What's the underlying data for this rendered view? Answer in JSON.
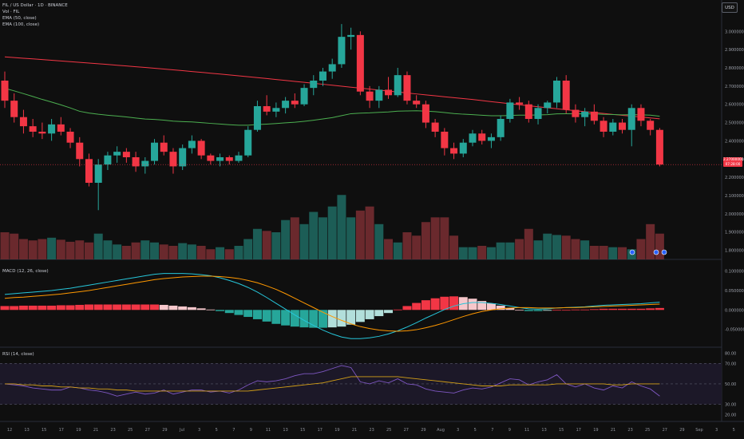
{
  "header": {
    "symbol_line": "FIL / US Dollar · 1D · BINANCE",
    "vol_label": "Vol · FIL",
    "ema50_label": "EMA (50, close)",
    "ema100_label": "EMA (100, close)",
    "currency": "USD"
  },
  "last_price": {
    "value": "2.27000000",
    "countdown": "07:28:00"
  },
  "macd_panel": {
    "title": "MACD (12, 26, close)"
  },
  "rsi_panel": {
    "title": "RSI (14, close)"
  },
  "colors": {
    "up": "#26a69a",
    "down": "#f23645",
    "ema50": "#4caf50",
    "ema100": "#f23645",
    "macd": "#26c6da",
    "signal": "#ff9800",
    "rsi": "#7e57c2",
    "rsi_ma": "#d4a017"
  },
  "chart_data": [
    {
      "type": "candlestick",
      "ylim": [
        1.75,
        3.15
      ],
      "y_ticks": [
        "3.00000000",
        "2.90000000",
        "2.80000000",
        "2.70000000",
        "2.60000000",
        "2.50000000",
        "2.40000000",
        "2.30000000",
        "2.20000000",
        "2.10000000",
        "2.00000000",
        "1.90000000",
        "1.80000000"
      ],
      "y_tick_values": [
        3.0,
        2.9,
        2.8,
        2.7,
        2.6,
        2.5,
        2.4,
        2.3,
        2.2,
        2.1,
        2.0,
        1.9,
        1.8
      ],
      "x_tick_labels": [
        "12",
        "13",
        "15",
        "17",
        "19",
        "21",
        "23",
        "25",
        "27",
        "29",
        "Jul",
        "3",
        "5",
        "7",
        "9",
        "11",
        "13",
        "15",
        "17",
        "19",
        "21",
        "23",
        "25",
        "27",
        "29",
        "Aug",
        "3",
        "5",
        "7",
        "9",
        "11",
        "13",
        "15",
        "17",
        "19",
        "21",
        "23",
        "25",
        "27",
        "29",
        "Sep",
        "3",
        "5"
      ],
      "candles": [
        [
          2.73,
          2.78,
          2.58,
          2.62
        ],
        [
          2.62,
          2.66,
          2.5,
          2.53
        ],
        [
          2.53,
          2.57,
          2.44,
          2.48
        ],
        [
          2.48,
          2.52,
          2.42,
          2.45
        ],
        [
          2.45,
          2.5,
          2.41,
          2.44
        ],
        [
          2.44,
          2.52,
          2.4,
          2.49
        ],
        [
          2.49,
          2.53,
          2.43,
          2.45
        ],
        [
          2.45,
          2.47,
          2.36,
          2.39
        ],
        [
          2.39,
          2.42,
          2.26,
          2.3
        ],
        [
          2.3,
          2.33,
          2.15,
          2.17
        ],
        [
          2.17,
          2.3,
          2.02,
          2.27
        ],
        [
          2.27,
          2.34,
          2.24,
          2.32
        ],
        [
          2.32,
          2.37,
          2.28,
          2.34
        ],
        [
          2.34,
          2.36,
          2.28,
          2.31
        ],
        [
          2.31,
          2.34,
          2.23,
          2.26
        ],
        [
          2.26,
          2.31,
          2.22,
          2.29
        ],
        [
          2.29,
          2.41,
          2.27,
          2.39
        ],
        [
          2.39,
          2.43,
          2.32,
          2.34
        ],
        [
          2.34,
          2.36,
          2.22,
          2.26
        ],
        [
          2.26,
          2.38,
          2.24,
          2.36
        ],
        [
          2.36,
          2.43,
          2.33,
          2.4
        ],
        [
          2.4,
          2.41,
          2.3,
          2.32
        ],
        [
          2.32,
          2.33,
          2.27,
          2.29
        ],
        [
          2.29,
          2.33,
          2.26,
          2.31
        ],
        [
          2.31,
          2.32,
          2.27,
          2.29
        ],
        [
          2.29,
          2.34,
          2.28,
          2.32
        ],
        [
          2.32,
          2.48,
          2.31,
          2.46
        ],
        [
          2.46,
          2.62,
          2.45,
          2.59
        ],
        [
          2.59,
          2.65,
          2.54,
          2.56
        ],
        [
          2.56,
          2.61,
          2.53,
          2.58
        ],
        [
          2.58,
          2.64,
          2.55,
          2.62
        ],
        [
          2.62,
          2.66,
          2.58,
          2.6
        ],
        [
          2.6,
          2.71,
          2.59,
          2.69
        ],
        [
          2.69,
          2.76,
          2.65,
          2.73
        ],
        [
          2.73,
          2.8,
          2.7,
          2.78
        ],
        [
          2.78,
          2.85,
          2.74,
          2.82
        ],
        [
          2.82,
          3.04,
          2.8,
          2.97
        ],
        [
          2.97,
          3.02,
          2.9,
          2.98
        ],
        [
          2.98,
          3.0,
          2.65,
          2.67
        ],
        [
          2.67,
          2.7,
          2.58,
          2.62
        ],
        [
          2.62,
          2.7,
          2.58,
          2.68
        ],
        [
          2.68,
          2.75,
          2.63,
          2.65
        ],
        [
          2.65,
          2.8,
          2.64,
          2.76
        ],
        [
          2.76,
          2.78,
          2.6,
          2.62
        ],
        [
          2.62,
          2.65,
          2.58,
          2.6
        ],
        [
          2.6,
          2.62,
          2.47,
          2.5
        ],
        [
          2.5,
          2.52,
          2.42,
          2.45
        ],
        [
          2.45,
          2.47,
          2.32,
          2.36
        ],
        [
          2.36,
          2.39,
          2.3,
          2.33
        ],
        [
          2.33,
          2.41,
          2.31,
          2.39
        ],
        [
          2.39,
          2.46,
          2.37,
          2.44
        ],
        [
          2.44,
          2.46,
          2.38,
          2.4
        ],
        [
          2.4,
          2.44,
          2.36,
          2.42
        ],
        [
          2.42,
          2.54,
          2.4,
          2.52
        ],
        [
          2.52,
          2.63,
          2.5,
          2.61
        ],
        [
          2.61,
          2.64,
          2.57,
          2.6
        ],
        [
          2.6,
          2.62,
          2.5,
          2.52
        ],
        [
          2.52,
          2.6,
          2.49,
          2.58
        ],
        [
          2.58,
          2.62,
          2.55,
          2.61
        ],
        [
          2.61,
          2.75,
          2.58,
          2.73
        ],
        [
          2.73,
          2.76,
          2.55,
          2.57
        ],
        [
          2.57,
          2.6,
          2.5,
          2.53
        ],
        [
          2.53,
          2.58,
          2.48,
          2.56
        ],
        [
          2.56,
          2.6,
          2.49,
          2.51
        ],
        [
          2.51,
          2.53,
          2.42,
          2.45
        ],
        [
          2.45,
          2.52,
          2.43,
          2.5
        ],
        [
          2.5,
          2.52,
          2.44,
          2.46
        ],
        [
          2.46,
          2.6,
          2.37,
          2.58
        ],
        [
          2.58,
          2.6,
          2.48,
          2.51
        ],
        [
          2.51,
          2.52,
          2.43,
          2.46
        ],
        [
          2.46,
          2.47,
          2.26,
          2.27
        ]
      ],
      "volume": [
        0.4,
        0.38,
        0.3,
        0.28,
        0.3,
        0.32,
        0.29,
        0.26,
        0.28,
        0.25,
        0.38,
        0.28,
        0.22,
        0.2,
        0.25,
        0.28,
        0.25,
        0.22,
        0.2,
        0.24,
        0.22,
        0.2,
        0.15,
        0.18,
        0.15,
        0.2,
        0.3,
        0.45,
        0.42,
        0.4,
        0.58,
        0.62,
        0.52,
        0.7,
        0.62,
        0.78,
        0.95,
        0.62,
        0.72,
        0.78,
        0.52,
        0.3,
        0.25,
        0.4,
        0.35,
        0.55,
        0.62,
        0.62,
        0.35,
        0.18,
        0.18,
        0.2,
        0.18,
        0.25,
        0.25,
        0.3,
        0.45,
        0.28,
        0.38,
        0.36,
        0.35,
        0.3,
        0.28,
        0.2,
        0.2,
        0.18,
        0.18,
        0.15,
        0.3,
        0.52,
        0.38
      ]
    },
    {
      "type": "line",
      "title": "MACD (12, 26, close)",
      "y_ticks": [
        "0.10000000",
        "0.05000000",
        "0.00000000",
        "-0.05000000"
      ],
      "y_tick_values": [
        0.1,
        0.05,
        0.0,
        -0.05
      ],
      "ylim": [
        -0.09,
        0.12
      ],
      "series": [
        {
          "values": [
            0.04,
            0.042,
            0.044,
            0.046,
            0.048,
            0.05,
            0.053,
            0.056,
            0.06,
            0.064,
            0.068,
            0.072,
            0.076,
            0.08,
            0.084,
            0.088,
            0.092,
            0.094,
            0.094,
            0.094,
            0.093,
            0.091,
            0.088,
            0.083,
            0.076,
            0.068,
            0.058,
            0.046,
            0.032,
            0.017,
            0.002,
            -0.013,
            -0.027,
            -0.04,
            -0.052,
            -0.062,
            -0.07,
            -0.074,
            -0.074,
            -0.072,
            -0.068,
            -0.062,
            -0.054,
            -0.044,
            -0.033,
            -0.021,
            -0.01,
            0.001,
            0.01,
            0.016,
            0.019,
            0.019,
            0.017,
            0.014,
            0.01,
            0.006,
            0.003,
            0.002,
            0.003,
            0.005,
            0.006,
            0.007,
            0.008,
            0.01,
            0.012,
            0.013,
            0.014,
            0.015,
            0.016,
            0.018,
            0.02
          ]
        },
        {
          "values": [
            0.03,
            0.032,
            0.033,
            0.035,
            0.037,
            0.039,
            0.041,
            0.044,
            0.047,
            0.05,
            0.054,
            0.058,
            0.062,
            0.066,
            0.07,
            0.074,
            0.078,
            0.081,
            0.083,
            0.085,
            0.086,
            0.087,
            0.087,
            0.086,
            0.084,
            0.081,
            0.076,
            0.07,
            0.062,
            0.053,
            0.042,
            0.03,
            0.018,
            0.006,
            -0.006,
            -0.017,
            -0.027,
            -0.036,
            -0.043,
            -0.048,
            -0.052,
            -0.054,
            -0.055,
            -0.054,
            -0.051,
            -0.046,
            -0.04,
            -0.033,
            -0.025,
            -0.017,
            -0.01,
            -0.004,
            0.0,
            0.003,
            0.005,
            0.006,
            0.006,
            0.005,
            0.005,
            0.005,
            0.006,
            0.006,
            0.007,
            0.008,
            0.009,
            0.01,
            0.011,
            0.012,
            0.013,
            0.014,
            0.015
          ]
        },
        {
          "values": [
            0.01,
            0.01,
            0.011,
            0.011,
            0.011,
            0.011,
            0.012,
            0.012,
            0.013,
            0.014,
            0.014,
            0.014,
            0.014,
            0.014,
            0.014,
            0.014,
            0.014,
            0.013,
            0.011,
            0.009,
            0.007,
            0.004,
            0.001,
            -0.003,
            -0.008,
            -0.013,
            -0.018,
            -0.024,
            -0.03,
            -0.036,
            -0.04,
            -0.043,
            -0.045,
            -0.046,
            -0.046,
            -0.045,
            -0.043,
            -0.038,
            -0.031,
            -0.024,
            -0.016,
            -0.008,
            0.001,
            0.01,
            0.018,
            0.025,
            0.03,
            0.034,
            0.035,
            0.033,
            0.029,
            0.023,
            0.017,
            0.011,
            0.005,
            0.0,
            -0.003,
            -0.003,
            -0.002,
            0.0,
            0.0,
            0.001,
            0.001,
            0.002,
            0.003,
            0.003,
            0.003,
            0.003,
            0.003,
            0.004,
            0.005
          ]
        }
      ]
    },
    {
      "type": "line",
      "title": "RSI (14, close)",
      "y_ticks": [
        "80.00",
        "70.00",
        "50.00",
        "30.00",
        "20.00"
      ],
      "y_tick_values": [
        80,
        70,
        50,
        30,
        20
      ],
      "ylim": [
        14,
        82
      ],
      "band": [
        30,
        70
      ],
      "series": [
        {
          "values": [
            50,
            49,
            48,
            46,
            45,
            44,
            44,
            47,
            46,
            44,
            43,
            41,
            38,
            40,
            42,
            40,
            41,
            44,
            40,
            42,
            44,
            44,
            42,
            43,
            41,
            44,
            49,
            53,
            52,
            53,
            55,
            58,
            60,
            60,
            62,
            65,
            68,
            66,
            52,
            50,
            53,
            51,
            55,
            50,
            49,
            45,
            43,
            42,
            41,
            44,
            46,
            45,
            47,
            51,
            55,
            54,
            49,
            52,
            54,
            59,
            50,
            47,
            50,
            46,
            44,
            48,
            46,
            52,
            48,
            45,
            38
          ]
        },
        {
          "values": [
            50,
            50,
            49,
            49,
            48,
            48,
            47,
            47,
            46,
            46,
            45,
            45,
            44,
            44,
            43,
            43,
            43,
            43,
            43,
            43,
            43,
            43,
            43,
            43,
            43,
            43,
            43,
            44,
            45,
            46,
            47,
            48,
            49,
            50,
            51,
            53,
            55,
            57,
            57,
            57,
            57,
            57,
            57,
            56,
            55,
            54,
            53,
            52,
            51,
            50,
            49,
            48,
            48,
            48,
            49,
            49,
            49,
            49,
            49,
            50,
            50,
            50,
            50,
            50,
            50,
            49,
            49,
            50,
            50,
            50,
            50
          ]
        }
      ]
    }
  ]
}
